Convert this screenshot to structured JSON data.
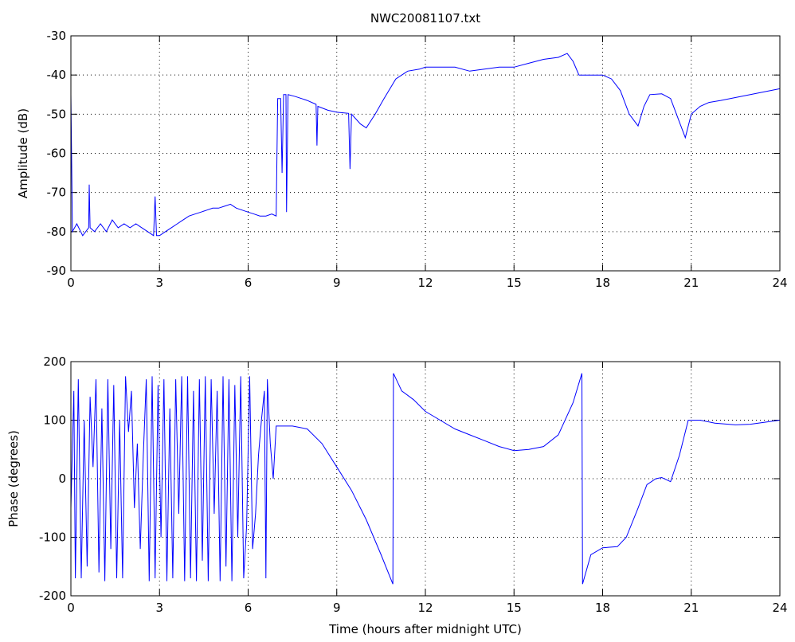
{
  "chart_data": [
    {
      "type": "line",
      "title": "NWC20081107.txt",
      "ylabel": "Amplitude (dB)",
      "color": "#0000ff",
      "grid": true,
      "xlim": [
        0,
        24
      ],
      "xticks": [
        0,
        3,
        6,
        9,
        12,
        15,
        18,
        21,
        24
      ],
      "ylim": [
        -90,
        -30
      ],
      "yticks": [
        -90,
        -80,
        -70,
        -60,
        -50,
        -40,
        -30
      ],
      "x": [
        0,
        0.05,
        0.2,
        0.4,
        0.6,
        0.62,
        0.65,
        0.8,
        1.0,
        1.2,
        1.4,
        1.6,
        1.8,
        2.0,
        2.2,
        2.4,
        2.6,
        2.8,
        2.85,
        2.9,
        3.0,
        3.2,
        3.4,
        3.6,
        3.8,
        4.0,
        4.2,
        4.4,
        4.6,
        4.8,
        5.0,
        5.2,
        5.4,
        5.6,
        5.8,
        6.0,
        6.2,
        6.4,
        6.6,
        6.8,
        6.95,
        7.0,
        7.1,
        7.15,
        7.2,
        7.28,
        7.3,
        7.35,
        7.6,
        8.0,
        8.3,
        8.33,
        8.36,
        8.7,
        9.0,
        9.4,
        9.45,
        9.5,
        9.8,
        10.0,
        10.3,
        10.6,
        11.0,
        11.4,
        11.8,
        12.0,
        12.5,
        13.0,
        13.5,
        14.0,
        14.5,
        15.0,
        15.5,
        16.0,
        16.5,
        16.8,
        17.0,
        17.2,
        17.5,
        18.0,
        18.3,
        18.6,
        18.9,
        19.2,
        19.4,
        19.6,
        20.0,
        20.3,
        20.6,
        20.8,
        21.0,
        21.3,
        21.6,
        22.0,
        23.0,
        24.0
      ],
      "values": [
        -45,
        -80,
        -78,
        -81,
        -79,
        -68,
        -79,
        -80,
        -78,
        -80,
        -77,
        -79,
        -78,
        -79,
        -78,
        -79,
        -80,
        -81,
        -71,
        -81,
        -81,
        -80,
        -79,
        -78,
        -77,
        -76,
        -75.5,
        -75,
        -74.5,
        -74,
        -74,
        -73.5,
        -73,
        -74,
        -74.5,
        -75,
        -75.5,
        -76,
        -76,
        -75.5,
        -76,
        -46,
        -46,
        -65,
        -45,
        -45,
        -75,
        -45,
        -45.5,
        -46.5,
        -47.5,
        -58,
        -48,
        -49,
        -49.5,
        -49.8,
        -64,
        -50,
        -52.5,
        -53.5,
        -50,
        -46,
        -41,
        -39,
        -38.5,
        -38,
        -38,
        -38,
        -39,
        -38.5,
        -38,
        -38,
        -37,
        -36,
        -35.5,
        -34.5,
        -36.5,
        -40,
        -40,
        -40,
        -41,
        -44,
        -50,
        -53,
        -48,
        -45,
        -44.8,
        -46,
        -52,
        -56,
        -50,
        -48,
        -47,
        -46.5,
        -45,
        -43.5
      ]
    },
    {
      "type": "line",
      "ylabel": "Phase (degrees)",
      "xlabel": "Time (hours after midnight UTC)",
      "color": "#0000ff",
      "grid": true,
      "xlim": [
        0,
        24
      ],
      "xticks": [
        0,
        3,
        6,
        9,
        12,
        15,
        18,
        21,
        24
      ],
      "ylim": [
        -200,
        200
      ],
      "yticks": [
        -200,
        -100,
        0,
        100,
        200
      ],
      "x": [
        0,
        0.1,
        0.15,
        0.25,
        0.35,
        0.45,
        0.55,
        0.65,
        0.75,
        0.85,
        0.95,
        1.05,
        1.15,
        1.25,
        1.35,
        1.45,
        1.55,
        1.65,
        1.75,
        1.85,
        1.95,
        2.05,
        2.15,
        2.25,
        2.35,
        2.45,
        2.55,
        2.65,
        2.75,
        2.85,
        2.95,
        3.05,
        3.15,
        3.25,
        3.35,
        3.45,
        3.55,
        3.65,
        3.75,
        3.85,
        3.95,
        4.05,
        4.15,
        4.25,
        4.35,
        4.45,
        4.55,
        4.65,
        4.75,
        4.85,
        4.95,
        5.05,
        5.15,
        5.25,
        5.35,
        5.45,
        5.55,
        5.65,
        5.75,
        5.85,
        5.95,
        6.05,
        6.15,
        6.25,
        6.35,
        6.45,
        6.55,
        6.6,
        6.65,
        6.75,
        6.85,
        6.95,
        7.2,
        7.5,
        8.0,
        8.5,
        9.0,
        9.5,
        10.0,
        10.5,
        10.9,
        10.92,
        11.2,
        11.6,
        12.0,
        12.5,
        13.0,
        13.5,
        14.0,
        14.5,
        15.0,
        15.5,
        16.0,
        16.5,
        17.0,
        17.3,
        17.32,
        17.6,
        18.0,
        18.5,
        18.8,
        19.2,
        19.5,
        19.8,
        20.0,
        20.3,
        20.6,
        20.9,
        21.3,
        21.8,
        22.5,
        23.0,
        24.0
      ],
      "values": [
        -50,
        150,
        -170,
        170,
        -170,
        100,
        -150,
        140,
        20,
        170,
        -160,
        120,
        -175,
        170,
        -120,
        160,
        -170,
        100,
        -170,
        175,
        80,
        150,
        -50,
        60,
        -120,
        40,
        170,
        -175,
        175,
        -170,
        160,
        -100,
        170,
        -175,
        120,
        -170,
        170,
        -60,
        175,
        -175,
        175,
        -170,
        150,
        -175,
        170,
        -140,
        175,
        -175,
        170,
        -60,
        150,
        -175,
        175,
        -150,
        170,
        -175,
        160,
        -100,
        175,
        -170,
        -80,
        175,
        -120,
        -60,
        40,
        100,
        150,
        -170,
        170,
        60,
        0,
        90,
        90,
        90,
        85,
        60,
        20,
        -20,
        -70,
        -130,
        -180,
        180,
        150,
        135,
        115,
        100,
        85,
        75,
        65,
        55,
        48,
        50,
        55,
        75,
        130,
        180,
        -180,
        -130,
        -118,
        -116,
        -100,
        -50,
        -10,
        0,
        2,
        -5,
        40,
        100,
        100,
        95,
        92,
        93,
        100
      ]
    }
  ]
}
